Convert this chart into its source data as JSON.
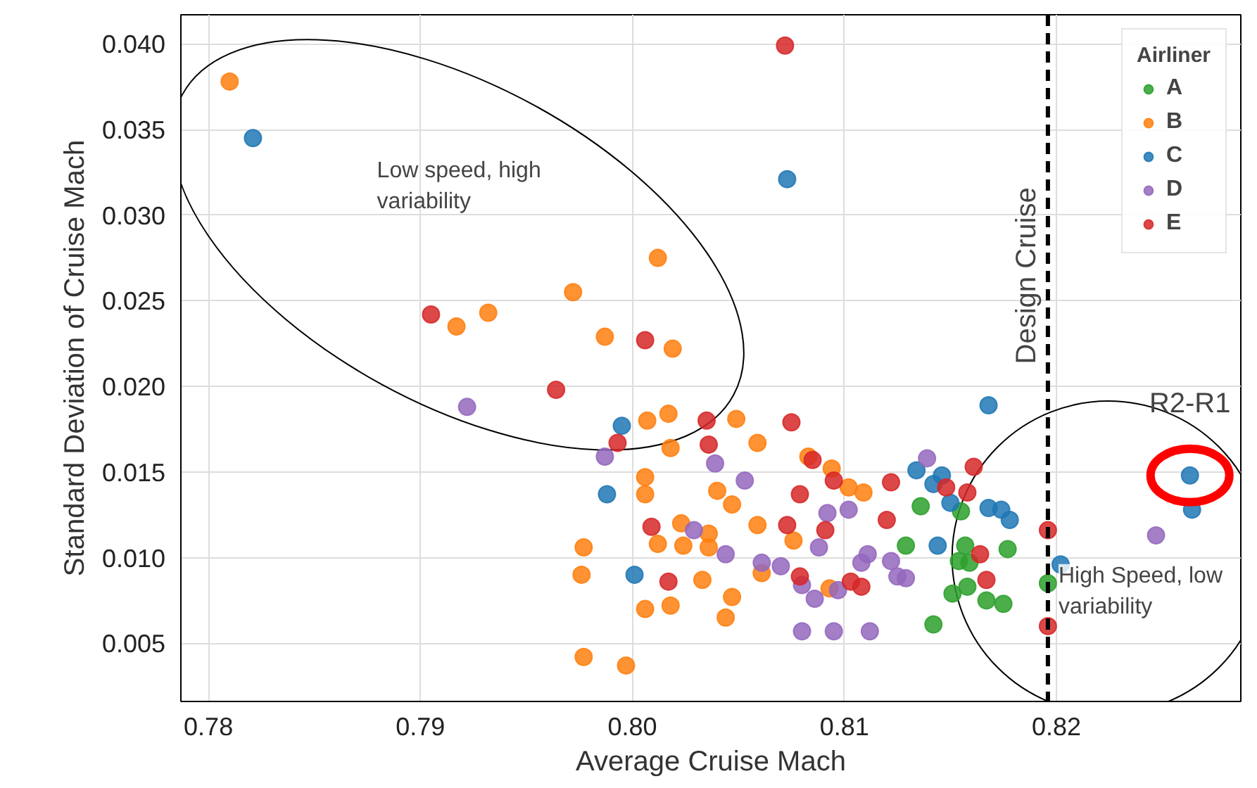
{
  "chart_data": {
    "type": "scatter",
    "xlabel": "Average Cruise Mach",
    "ylabel": "Standard Deviation of Cruise Mach",
    "legend_title": "Airliner",
    "xlim": [
      0.7787,
      0.8287
    ],
    "ylim": [
      0.0016,
      0.0417
    ],
    "xticks": [
      0.78,
      0.79,
      {
        "value": 0.8,
        "label": "0.80"
      },
      0.81,
      0.82
    ],
    "yticks": [
      0.005,
      {
        "value": 0.01,
        "label": "0.010"
      },
      0.015,
      {
        "value": 0.02,
        "label": "0.020"
      },
      0.025,
      {
        "value": 0.03,
        "label": "0.030"
      },
      0.035,
      {
        "value": 0.04,
        "label": "0.040"
      }
    ],
    "grid": true,
    "legend": "top right",
    "marker": "circle",
    "ref_lines": [
      {
        "axis": "x",
        "value": 0.8196,
        "label": "Design Cruise",
        "color": "#000000",
        "line_style": "dashed"
      }
    ],
    "annotations": [
      "Low speed, high variability",
      "High Speed, low variability",
      {
        "text": "R2-R1",
        "x": 0.8263,
        "y": 0.0148
      }
    ],
    "series": [
      {
        "name": "A",
        "color": "#2ca02c",
        "x": [
          0.8136,
          0.8155,
          0.8129,
          0.8157,
          0.8177,
          0.8154,
          0.8159,
          0.8158,
          0.8151,
          0.8167,
          0.8175,
          0.8142,
          0.8196
        ],
        "values": [
          0.013,
          0.0127,
          0.0107,
          0.0107,
          0.0105,
          0.0098,
          0.0097,
          0.0083,
          0.0079,
          0.0075,
          0.0073,
          0.0061,
          0.0085
        ]
      },
      {
        "name": "B",
        "color": "#ff7f0e",
        "x": [
          0.781,
          0.7972,
          0.8012,
          0.7932,
          0.7917,
          0.7987,
          0.8019,
          0.8007,
          0.8017,
          0.8049,
          0.8059,
          0.8018,
          0.8083,
          0.8094,
          0.8102,
          0.8109,
          0.8006,
          0.8006,
          0.804,
          0.8047,
          0.8059,
          0.8023,
          0.8036,
          0.8012,
          0.8024,
          0.8036,
          0.8076,
          0.7977,
          0.7976,
          0.8061,
          0.8033,
          0.8047,
          0.8018,
          0.8006,
          0.8044,
          0.8093,
          0.7977,
          0.7997
        ],
        "values": [
          0.0378,
          0.0255,
          0.0275,
          0.0243,
          0.0235,
          0.0229,
          0.0222,
          0.018,
          0.0184,
          0.0181,
          0.0167,
          0.0164,
          0.0159,
          0.0152,
          0.0141,
          0.0138,
          0.0147,
          0.0137,
          0.0139,
          0.0131,
          0.0119,
          0.012,
          0.0114,
          0.0108,
          0.0107,
          0.0106,
          0.011,
          0.0106,
          0.009,
          0.0091,
          0.0087,
          0.0077,
          0.0072,
          0.007,
          0.0065,
          0.0082,
          0.0042,
          0.0037
        ]
      },
      {
        "name": "C",
        "color": "#1f77b4",
        "x": [
          0.7821,
          0.8073,
          0.7995,
          0.7988,
          0.8001,
          0.8168,
          0.8134,
          0.8146,
          0.8142,
          0.815,
          0.8168,
          0.8174,
          0.8178,
          0.8144,
          0.8202,
          0.8263,
          0.8264
        ],
        "values": [
          0.0345,
          0.0321,
          0.0177,
          0.0137,
          0.009,
          0.0189,
          0.0151,
          0.0148,
          0.0143,
          0.0132,
          0.0129,
          0.0128,
          0.0122,
          0.0107,
          0.0096,
          0.0148,
          0.0128
        ]
      },
      {
        "name": "D",
        "color": "#9467bd",
        "x": [
          0.7922,
          0.7987,
          0.8039,
          0.8053,
          0.8092,
          0.8102,
          0.8029,
          0.8044,
          0.8061,
          0.807,
          0.808,
          0.8086,
          0.8097,
          0.8088,
          0.8108,
          0.8111,
          0.8122,
          0.8125,
          0.808,
          0.8095,
          0.8112,
          0.8139,
          0.8129,
          0.8247
        ],
        "values": [
          0.0188,
          0.0159,
          0.0155,
          0.0145,
          0.0126,
          0.0128,
          0.0116,
          0.0102,
          0.0097,
          0.0095,
          0.0084,
          0.0076,
          0.0081,
          0.0106,
          0.0097,
          0.0102,
          0.0098,
          0.0089,
          0.0057,
          0.0057,
          0.0057,
          0.0158,
          0.0088,
          0.0113
        ]
      },
      {
        "name": "E",
        "color": "#d62728",
        "x": [
          0.8072,
          0.7905,
          0.8006,
          0.7964,
          0.8035,
          0.8075,
          0.7993,
          0.8036,
          0.8085,
          0.8095,
          0.8122,
          0.8079,
          0.8073,
          0.8091,
          0.812,
          0.8009,
          0.8017,
          0.8079,
          0.8103,
          0.8108,
          0.8161,
          0.8148,
          0.8158,
          0.8164,
          0.8167,
          0.8196,
          0.8196
        ],
        "values": [
          0.0399,
          0.0242,
          0.0227,
          0.0198,
          0.018,
          0.0179,
          0.0167,
          0.0166,
          0.0157,
          0.0145,
          0.0144,
          0.0137,
          0.0119,
          0.0116,
          0.0122,
          0.0118,
          0.0086,
          0.0089,
          0.0086,
          0.0083,
          0.0153,
          0.0141,
          0.0138,
          0.0102,
          0.0087,
          0.0116,
          0.006
        ]
      }
    ]
  }
}
